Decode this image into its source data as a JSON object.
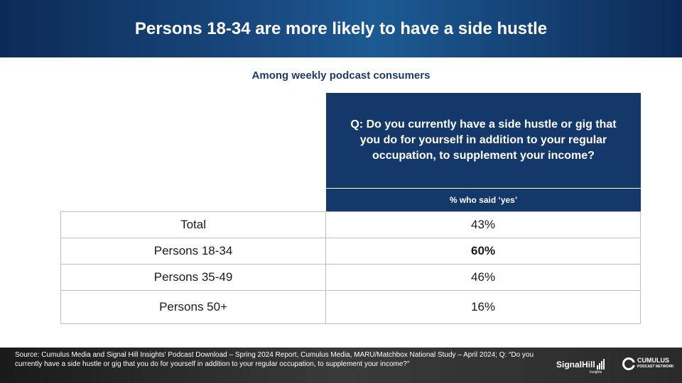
{
  "header": {
    "title": "Persons 18-34 are more likely to have a side hustle"
  },
  "subtitle": "Among weekly podcast consumers",
  "question": "Q: Do you currently have a side hustle or gig that you do for yourself in addition to your regular occupation, to supplement your income?",
  "column_header": "% who said ‘yes’",
  "rows": [
    {
      "label": "Total",
      "value": "43%"
    },
    {
      "label": "Persons 18-34",
      "value": "60%"
    },
    {
      "label": "Persons 35-49",
      "value": "46%"
    },
    {
      "label": "Persons 50+",
      "value": "16%"
    }
  ],
  "footer": {
    "source": "Source: Cumulus Media and Signal Hill Insights' Podcast Download – Spring 2024 Report, Cumulus Media, MARU/Matchbox National Study – April 2024; Q: “Do you currently have a side hustle or gig that you do for yourself in addition to your regular occupation, to supplement your income?”",
    "logo_signalhill": "SignalHill",
    "logo_signalhill_sub": "Insights",
    "logo_cumulus": "CUMULUS",
    "logo_cumulus_sub": "PODCAST NETWORK"
  }
}
